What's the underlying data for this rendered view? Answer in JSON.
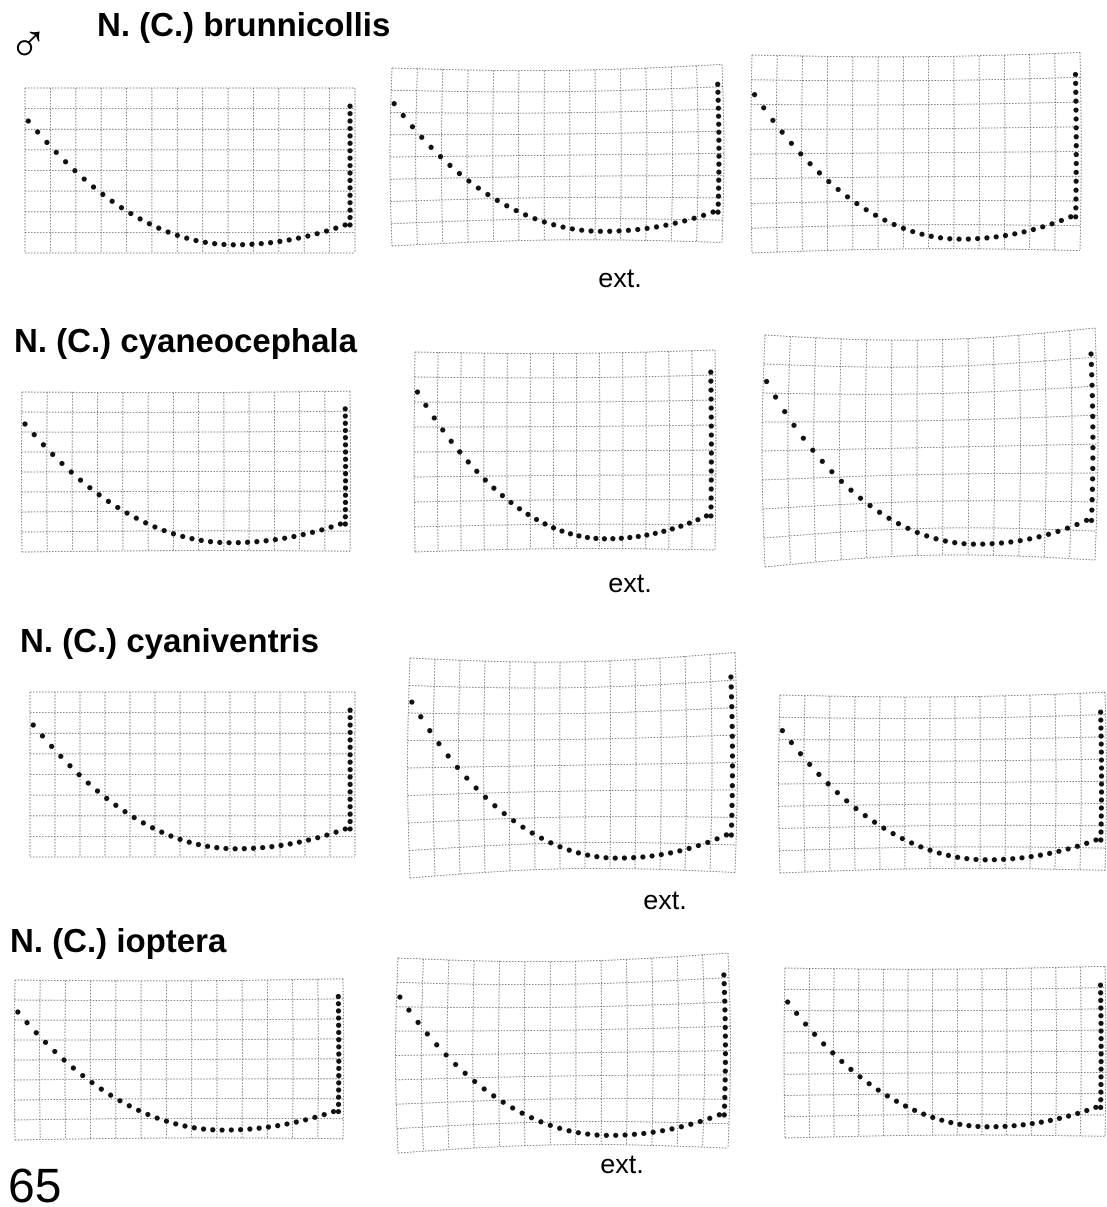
{
  "sex_symbol": "♂",
  "figure_label": "65",
  "rows": [
    {
      "title": "N. (C.) brunnicollis",
      "note": "ext."
    },
    {
      "title": "N. (C.) cyaneocephala",
      "note": "ext."
    },
    {
      "title": "N. (C.) cyaniventris",
      "note": "ext."
    },
    {
      "title": "N. (C.) ioptera",
      "note": "ext."
    }
  ]
}
